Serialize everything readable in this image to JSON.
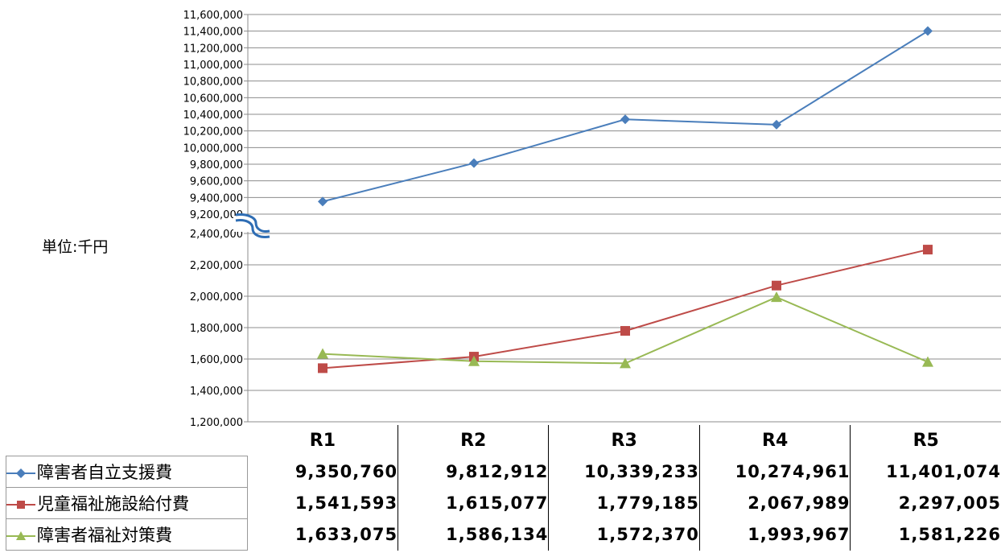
{
  "chart_data": {
    "type": "line",
    "unit_label": "単位:千円",
    "categories": [
      "R1",
      "R2",
      "R3",
      "R4",
      "R5"
    ],
    "series": [
      {
        "name": "障害者自立支援費",
        "color": "#4a7ebb",
        "marker": "diamond",
        "values": [
          9350760,
          9812912,
          10339233,
          10274961,
          11401074
        ],
        "labels": [
          "9,350,760",
          "9,812,912",
          "10,339,233",
          "10,274,961",
          "11,401,074"
        ]
      },
      {
        "name": "児童福祉施設給付費",
        "color": "#be4b48",
        "marker": "square",
        "values": [
          1541593,
          1615077,
          1779185,
          2067989,
          2297005
        ],
        "labels": [
          "1,541,593",
          "1,615,077",
          "1,779,185",
          "2,067,989",
          "2,297,005"
        ]
      },
      {
        "name": "障害者福祉対策費",
        "color": "#98b954",
        "marker": "triangle",
        "values": [
          1633075,
          1586134,
          1572370,
          1993967,
          1581226
        ],
        "labels": [
          "1,633,075",
          "1,586,134",
          "1,572,370",
          "1,993,967",
          "1,581,226"
        ]
      }
    ],
    "y_axis_upper": {
      "range": [
        9200000,
        11600000
      ],
      "step": 200000,
      "ticks": [
        "9,200,000",
        "9,400,000",
        "9,600,000",
        "9,800,000",
        "10,000,000",
        "10,200,000",
        "10,400,000",
        "10,600,000",
        "10,800,000",
        "11,000,000",
        "11,200,000",
        "11,400,000",
        "11,600,000"
      ]
    },
    "y_axis_lower": {
      "range": [
        1200000,
        2400000
      ],
      "step": 200000,
      "ticks": [
        "1,200,000",
        "1,400,000",
        "1,600,000",
        "1,800,000",
        "2,000,000",
        "2,200,000",
        "2,400,000"
      ]
    },
    "axis_break": true,
    "grid": true,
    "legend": "in data table, left",
    "data_table": true
  }
}
